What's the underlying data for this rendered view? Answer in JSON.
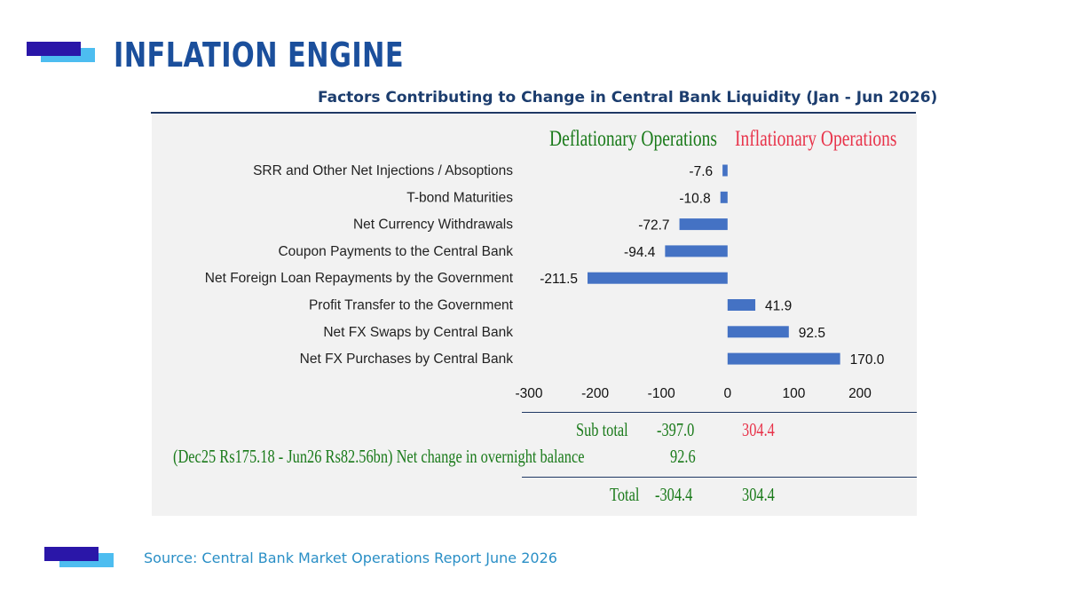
{
  "slide": {
    "title": "INFLATION ENGINE",
    "source": "Source: Central Bank Market Operations Report June 2026"
  },
  "colors": {
    "title": "#1b4f9c",
    "bar": "#4472c4",
    "deflationary": "#1a7a1a",
    "inflationary": "#e8334a",
    "source": "#2a8fc6",
    "deco_dark": "#2a16a8",
    "deco_light": "#4dbdf0"
  },
  "chart_data": {
    "type": "bar",
    "orientation": "horizontal",
    "title": "Factors Contributing to Change in Central Bank Liquidity (Jan - Jun 2026)",
    "header_left": "Deflationary Operations",
    "header_right": "Inflationary Operations",
    "categories": [
      "SRR and Other Net Injections / Absoptions",
      "T-bond Maturities",
      "Net Currency Withdrawals",
      "Coupon Payments to the Central Bank",
      "Net Foreign Loan Repayments by the Government",
      "Profit Transfer to the Government",
      "Net FX Swaps by Central Bank",
      "Net FX Purchases by Central Bank"
    ],
    "values": [
      -7.6,
      -10.8,
      -72.7,
      -94.4,
      -211.5,
      41.9,
      92.5,
      170.0
    ],
    "labels": [
      "-7.6",
      "-10.8",
      "-72.7",
      "-94.4",
      "-211.5",
      "41.9",
      "92.5",
      "170.0"
    ],
    "xlim": [
      -300,
      200
    ],
    "xticks": [
      "-300",
      "-200",
      "-100",
      "0",
      "100",
      "200"
    ],
    "grid": false,
    "legend": "none"
  },
  "summary": {
    "subtotal_label": "Sub total",
    "subtotal_deflationary": "-397.0",
    "subtotal_inflationary": "304.4",
    "overnight_label": "(Dec25 Rs175.18 - Jun26 Rs82.56bn) Net change in overnight balance",
    "overnight_value": "92.6",
    "total_label": "Total",
    "total_deflationary": "-304.4",
    "total_inflationary": "304.4"
  }
}
